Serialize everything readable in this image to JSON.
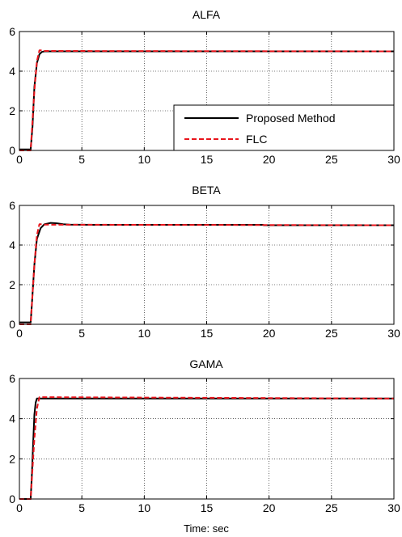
{
  "chart_data": [
    {
      "type": "line",
      "title": "ALFA",
      "xlabel": "",
      "ylabel": "",
      "xlim": [
        0,
        30
      ],
      "ylim": [
        0,
        6
      ],
      "xticks": [
        "0",
        "5",
        "10",
        "15",
        "20",
        "25",
        "30"
      ],
      "yticks": [
        "0",
        "2",
        "4",
        "6"
      ],
      "grid": true,
      "legend": {
        "placement": "lower-right",
        "entries": [
          "Proposed Method",
          "FLC"
        ]
      },
      "series": [
        {
          "name": "Proposed Method",
          "color": "#000000",
          "style": "solid",
          "x": [
            0,
            0.9,
            1.05,
            1.2,
            1.4,
            1.6,
            1.8,
            2.0,
            2.3,
            30
          ],
          "y": [
            0.05,
            0.05,
            1.2,
            3.2,
            4.4,
            4.85,
            4.97,
            5.0,
            5.0,
            5.0
          ]
        },
        {
          "name": "FLC",
          "color": "#e8141b",
          "style": "dashed",
          "x": [
            0,
            0.9,
            1.0,
            1.2,
            1.4,
            1.6,
            1.8,
            2.0,
            30
          ],
          "y": [
            0.0,
            0.0,
            1.0,
            3.0,
            4.5,
            5.05,
            5.05,
            5.02,
            5.0
          ]
        }
      ]
    },
    {
      "type": "line",
      "title": "BETA",
      "xlabel": "",
      "ylabel": "",
      "xlim": [
        0,
        30
      ],
      "ylim": [
        0,
        6
      ],
      "xticks": [
        "0",
        "5",
        "10",
        "15",
        "20",
        "25",
        "30"
      ],
      "yticks": [
        "0",
        "2",
        "4",
        "6"
      ],
      "grid": true,
      "series": [
        {
          "name": "Proposed Method",
          "color": "#000000",
          "style": "solid",
          "x": [
            0,
            0.9,
            1.0,
            1.2,
            1.4,
            1.7,
            2.0,
            2.5,
            3.0,
            3.5,
            4.0,
            6,
            19.5,
            19.6,
            30
          ],
          "y": [
            0.1,
            0.1,
            1.0,
            3.0,
            4.3,
            4.85,
            5.05,
            5.12,
            5.1,
            5.05,
            5.03,
            5.02,
            5.02,
            5.0,
            5.0
          ]
        },
        {
          "name": "FLC",
          "color": "#e8141b",
          "style": "dashed",
          "x": [
            0,
            0.9,
            1.0,
            1.2,
            1.4,
            1.6,
            1.8,
            2.0,
            30
          ],
          "y": [
            0.0,
            0.0,
            1.0,
            3.0,
            4.5,
            5.05,
            5.05,
            5.03,
            5.0
          ]
        }
      ]
    },
    {
      "type": "line",
      "title": "GAMA",
      "xlabel": "Time: sec",
      "ylabel": "",
      "xlim": [
        0,
        30
      ],
      "ylim": [
        0,
        6
      ],
      "xticks": [
        "0",
        "5",
        "10",
        "15",
        "20",
        "25",
        "30"
      ],
      "yticks": [
        "0",
        "2",
        "4",
        "6"
      ],
      "grid": true,
      "series": [
        {
          "name": "Proposed Method",
          "color": "#000000",
          "style": "solid",
          "x": [
            0,
            0.9,
            1.0,
            1.1,
            1.2,
            1.3,
            1.4,
            1.5,
            30
          ],
          "y": [
            0.0,
            0.0,
            1.2,
            2.8,
            4.2,
            4.8,
            5.0,
            5.0,
            5.0
          ]
        },
        {
          "name": "FLC",
          "color": "#e8141b",
          "style": "dashed",
          "x": [
            0,
            0.9,
            1.0,
            1.2,
            1.4,
            1.6,
            1.8,
            30
          ],
          "y": [
            0.0,
            0.0,
            1.0,
            3.0,
            4.5,
            5.07,
            5.07,
            5.0
          ]
        }
      ]
    }
  ]
}
